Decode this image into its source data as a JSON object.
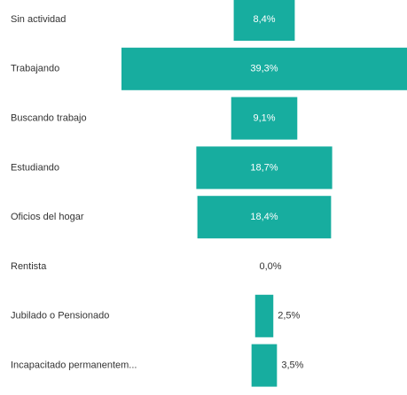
{
  "chart_data": {
    "type": "funnel",
    "categories": [
      "Sin actividad",
      "Trabajando",
      "Buscando trabajo",
      "Estudiando",
      "Oficios del hogar",
      "Rentista",
      "Jubilado o Pensionado",
      "Incapacitado permanentem..."
    ],
    "values": [
      8.4,
      39.3,
      9.1,
      18.7,
      18.4,
      0.0,
      2.5,
      3.5
    ],
    "value_labels": [
      "8,4%",
      "39,3%",
      "9,1%",
      "18,7%",
      "18,4%",
      "0,0%",
      "2,5%",
      "3,5%"
    ],
    "color": "#17ad9f"
  }
}
